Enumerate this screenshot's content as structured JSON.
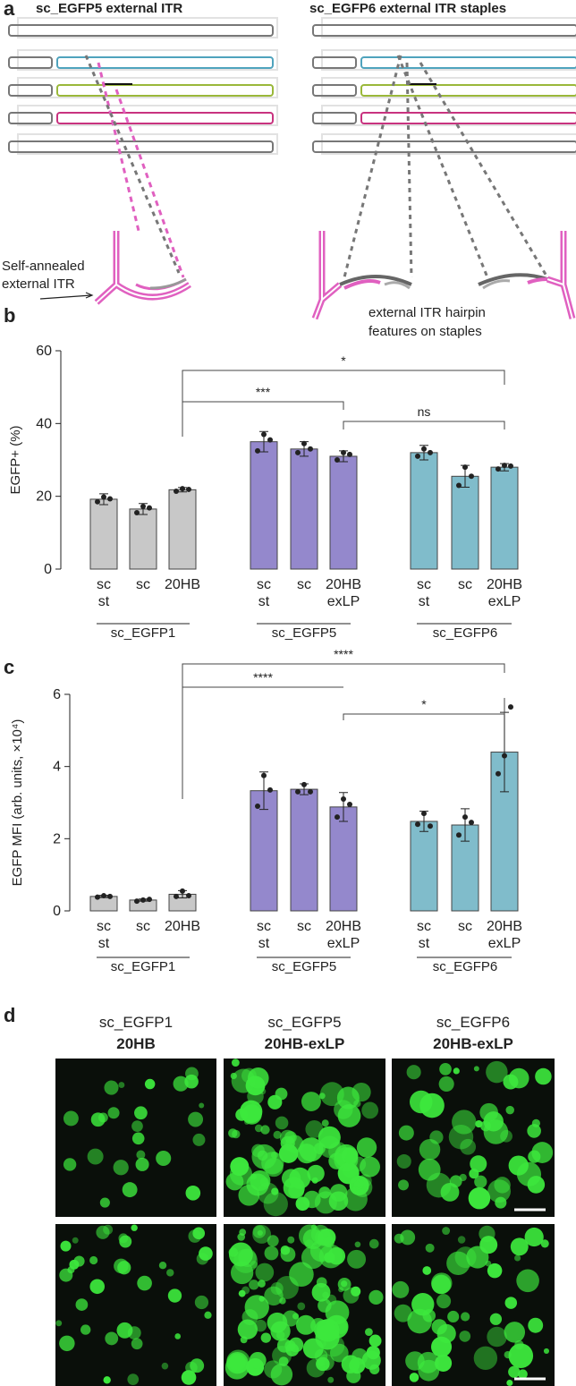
{
  "panel_labels": [
    "a",
    "b",
    "c",
    "d"
  ],
  "panel_a": {
    "left_title": "sc_EGFP5 external ITR",
    "right_title": "sc_EGFP6  external ITR staples",
    "left_note": [
      "Self-annealed",
      "external ITR"
    ],
    "right_note": [
      "external ITR hairpin",
      "features on staples"
    ]
  },
  "chart_data": [
    {
      "type": "bar",
      "ylabel": "EGFP+ (%)",
      "ylim": [
        0,
        60
      ],
      "yticks": [
        0,
        20,
        40,
        60
      ],
      "series": [
        {
          "name": "sc_EGFP1",
          "color": "#c8c8c8",
          "categories": [
            [
              "sc",
              "st"
            ],
            [
              "sc"
            ],
            [
              "20HB"
            ]
          ],
          "values": [
            19.2,
            16.5,
            21.8
          ],
          "errors": [
            1.5,
            1.5,
            0.6
          ],
          "points": [
            [
              18.5,
              19.8,
              19.3
            ],
            [
              15.5,
              17.2,
              16.8
            ],
            [
              21.4,
              22.1,
              21.9
            ]
          ]
        },
        {
          "name": "sc_EGFP5",
          "color": "#9488cc",
          "categories": [
            [
              "sc",
              "st"
            ],
            [
              "sc"
            ],
            [
              "20HB",
              "exLP"
            ]
          ],
          "values": [
            35,
            33,
            31
          ],
          "errors": [
            2.8,
            2,
            1.5
          ],
          "points": [
            [
              32.5,
              37,
              35.5
            ],
            [
              32,
              34.5,
              33
            ],
            [
              30,
              32,
              31.5
            ]
          ]
        },
        {
          "name": "sc_EGFP6",
          "color": "#80bccb",
          "categories": [
            [
              "sc",
              "st"
            ],
            [
              "sc"
            ],
            [
              "20HB",
              "exLP"
            ]
          ],
          "values": [
            32,
            25.5,
            28
          ],
          "errors": [
            2,
            3,
            1
          ],
          "points": [
            [
              31,
              33,
              32
            ],
            [
              23,
              28,
              25.5
            ],
            [
              27.5,
              28.5,
              28.3
            ]
          ]
        }
      ],
      "annotations": [
        "*",
        "***",
        "ns"
      ]
    },
    {
      "type": "bar",
      "ylabel": "EGFP MFI (arb. units, ×10⁴)",
      "ylim": [
        0,
        6
      ],
      "yticks": [
        0,
        2,
        4,
        6
      ],
      "series": [
        {
          "name": "sc_EGFP1",
          "color": "#c8c8c8",
          "categories": [
            [
              "sc",
              "st"
            ],
            [
              "sc"
            ],
            [
              "20HB"
            ]
          ],
          "values": [
            0.4,
            0.3,
            0.46
          ],
          "errors": [
            0.03,
            0.03,
            0.1
          ],
          "points": [
            [
              0.38,
              0.42,
              0.4
            ],
            [
              0.27,
              0.3,
              0.32
            ],
            [
              0.4,
              0.55,
              0.42
            ]
          ]
        },
        {
          "name": "sc_EGFP5",
          "color": "#9488cc",
          "categories": [
            [
              "sc",
              "st"
            ],
            [
              "sc"
            ],
            [
              "20HB",
              "exLP"
            ]
          ],
          "values": [
            3.33,
            3.37,
            2.88
          ],
          "errors": [
            0.52,
            0.15,
            0.4
          ],
          "points": [
            [
              2.9,
              3.75,
              3.35
            ],
            [
              3.3,
              3.5,
              3.3
            ],
            [
              2.6,
              3.1,
              2.95
            ]
          ]
        },
        {
          "name": "sc_EGFP6",
          "color": "#80bccb",
          "categories": [
            [
              "sc",
              "st"
            ],
            [
              "sc"
            ],
            [
              "20HB",
              "exLP"
            ]
          ],
          "values": [
            2.48,
            2.38,
            4.4
          ],
          "errors": [
            0.28,
            0.45,
            1.1
          ],
          "points": [
            [
              2.4,
              2.7,
              2.35
            ],
            [
              2.1,
              2.6,
              2.45
            ],
            [
              3.8,
              4.3,
              5.65
            ]
          ]
        }
      ],
      "annotations": [
        "****",
        "****",
        "*"
      ]
    }
  ],
  "panel_d": {
    "columns": [
      {
        "name": "sc_EGFP1",
        "construct": "20HB"
      },
      {
        "name": "sc_EGFP5",
        "construct": "20HB-exLP"
      },
      {
        "name": "sc_EGFP6",
        "construct": "20HB-exLP"
      }
    ]
  }
}
